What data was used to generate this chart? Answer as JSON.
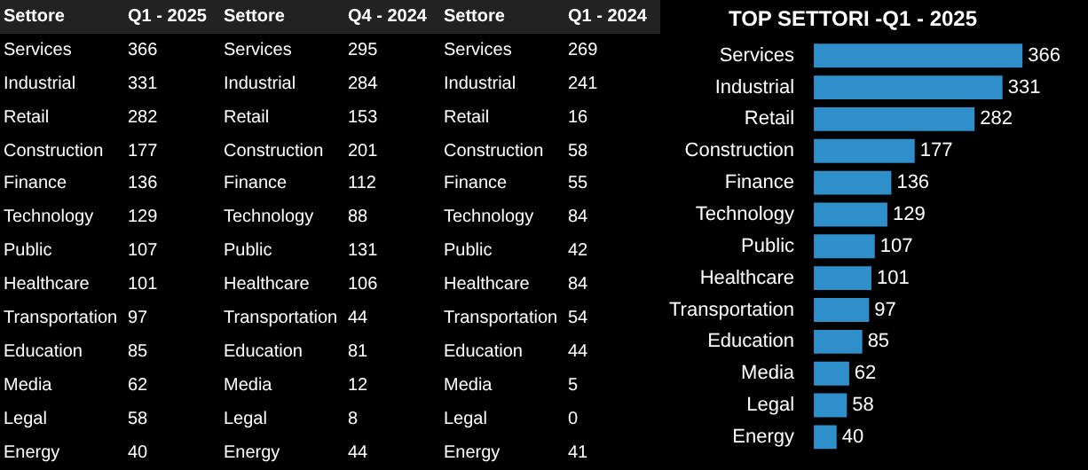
{
  "chart_data": [
    {
      "type": "other",
      "xlabel": "Settore",
      "categories": [
        "Services",
        "Industrial",
        "Retail",
        "Construction",
        "Finance",
        "Technology",
        "Public",
        "Healthcare",
        "Transportation",
        "Education",
        "Media",
        "Legal",
        "Energy"
      ],
      "data_labels": true,
      "series": [
        {
          "name": "Q1 - 2025",
          "values": [
            366,
            331,
            282,
            177,
            136,
            129,
            107,
            101,
            97,
            85,
            62,
            58,
            40
          ]
        },
        {
          "name": "Q4 - 2024",
          "values": [
            295,
            284,
            153,
            201,
            112,
            88,
            131,
            106,
            44,
            81,
            12,
            8,
            44
          ]
        },
        {
          "name": "Q1 - 2024",
          "values": [
            269,
            241,
            16,
            58,
            55,
            84,
            42,
            84,
            54,
            44,
            5,
            0,
            41
          ]
        }
      ]
    },
    {
      "type": "bar",
      "orientation": "horizontal",
      "title": "TOP SETTORI -Q1 - 2025",
      "categories": [
        "Services",
        "Industrial",
        "Retail",
        "Construction",
        "Finance",
        "Technology",
        "Public",
        "Healthcare",
        "Transportation",
        "Education",
        "Media",
        "Legal",
        "Energy"
      ],
      "values": [
        366,
        331,
        282,
        177,
        136,
        129,
        107,
        101,
        97,
        85,
        62,
        58,
        40
      ],
      "color": "#2e8fca",
      "data_labels": true,
      "tick_labels": "y",
      "legend": false
    }
  ]
}
